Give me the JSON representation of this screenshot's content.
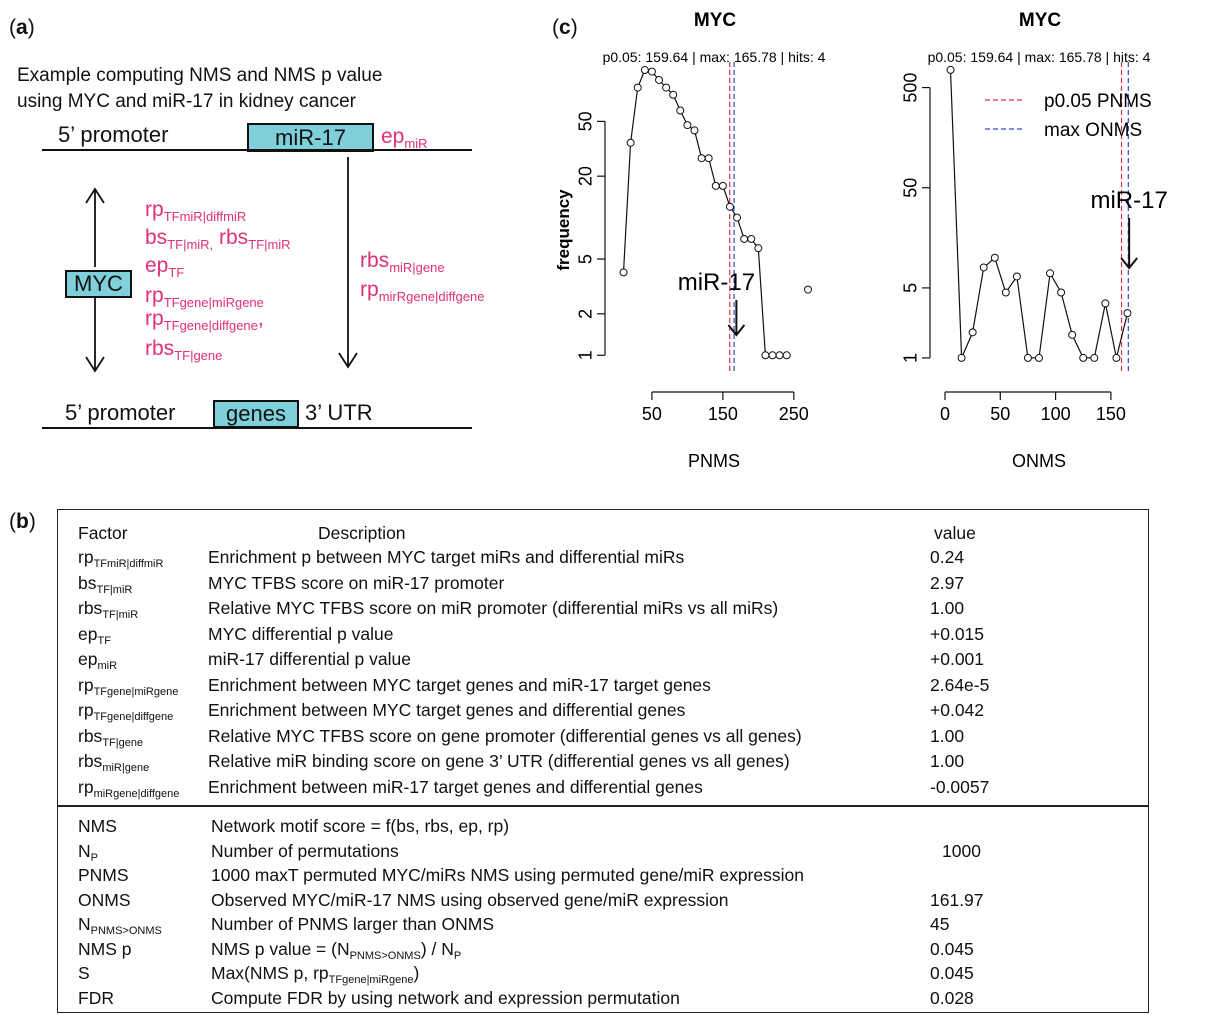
{
  "panel_a": {
    "label": "a",
    "example_line1": "Example computing NMS and NMS p value",
    "example_line2": "using MYC and miR-17 in kidney cancer",
    "top_promoter": "5’ promoter",
    "mir_box": "miR-17",
    "ep_mir": {
      "base": "ep",
      "sub": "miR"
    },
    "myc_box": "MYC",
    "left_vars": [
      {
        "base": "rp",
        "sub": "TFmiR|diffmiR"
      },
      {
        "base": "bs",
        "sub": "TF|miR,",
        "base2": " rbs",
        "sub2": "TF|miR"
      },
      {
        "base": "ep",
        "sub": "TF"
      },
      {
        "base": "rp",
        "sub": "TFgene|miRgene"
      },
      {
        "base": "rp",
        "sub": "TFgene|diffgene",
        "tail": ","
      },
      {
        "base": "rbs",
        "sub": "TF|gene"
      }
    ],
    "right_vars": [
      {
        "base": "rbs",
        "sub": "miR|gene"
      },
      {
        "base": "rp",
        "sub": "mirRgene|diffgene"
      }
    ],
    "bottom_promoter": "5’ promoter",
    "genes_box": "genes",
    "utr": "3’ UTR"
  },
  "panel_b": {
    "label": "b",
    "headers": {
      "factor": "Factor",
      "description": "Description",
      "value": "value"
    },
    "rows_top": [
      {
        "fb": "rp",
        "fs": "TFmiR|diffmiR",
        "desc": "Enrichment p between MYC target miRs and differential miRs",
        "value": "0.24"
      },
      {
        "fb": "bs",
        "fs": "TF|miR",
        "desc": "MYC TFBS score on miR-17 promoter",
        "value": "2.97"
      },
      {
        "fb": "rbs",
        "fs": "TF|miR",
        "desc": "Relative MYC TFBS score on miR promoter (differential miRs vs all miRs)",
        "value": "1.00"
      },
      {
        "fb": "ep",
        "fs": "TF",
        "desc": "MYC differential p value",
        "value": "+0.015"
      },
      {
        "fb": "ep",
        "fs": "miR",
        "desc": "miR-17 differential p value",
        "value": "+0.001"
      },
      {
        "fb": "rp",
        "fs": "TFgene|miRgene",
        "desc": "Enrichment between MYC target genes and miR-17 target genes",
        "value": "2.64e-5"
      },
      {
        "fb": "rp",
        "fs": "TFgene|diffgene",
        "desc": "Enrichment between MYC target genes and differential genes",
        "value": "+0.042"
      },
      {
        "fb": "rbs",
        "fs": "TF|gene",
        "desc": "Relative MYC TFBS score on gene promoter (differential genes vs all genes)",
        "value": "1.00"
      },
      {
        "fb": "rbs",
        "fs": "miR|gene",
        "desc": "Relative miR binding score on gene 3’ UTR (differential genes vs all genes)",
        "value": "1.00"
      },
      {
        "fb": "rp",
        "fs": "miRgene|diffgene",
        "desc": "Enrichment between miR-17 target genes and differential genes",
        "value": "-0.0057"
      }
    ],
    "rows_bottom": [
      {
        "fb": "NMS",
        "fs": "",
        "desc": "Network motif score  =  f(bs, rbs, ep, rp)",
        "value": ""
      },
      {
        "fb": "N",
        "fs": "P",
        "desc": "Number of permutations",
        "value": "1000"
      },
      {
        "fb": "PNMS",
        "fs": "",
        "desc": "1000 maxT permuted MYC/miRs NMS using permuted gene/miR expression",
        "value": ""
      },
      {
        "fb": "ONMS",
        "fs": "",
        "desc": "Observed MYC/miR-17 NMS using observed gene/miR expression",
        "value": "161.97"
      },
      {
        "fb": "N",
        "fs": "PNMS>ONMS",
        "desc": "Number of PNMS larger than ONMS",
        "value": "45"
      },
      {
        "fb": "NMS p",
        "fs": "",
        "desc": "NMS p value = (N",
        "desc_sub": "PNMS>ONMS",
        "desc_tail": ") / N",
        "desc_sub2": "P",
        "value": "0.045"
      },
      {
        "fb": "S",
        "fs": "",
        "desc": "Max(NMS p, rp",
        "desc_sub": "TFgene|miRgene",
        "desc_tail": ")",
        "value": "0.045"
      },
      {
        "fb": "FDR",
        "fs": "",
        "desc": "Compute FDR by using network and expression permutation",
        "value": "0.028"
      }
    ]
  },
  "panel_c": {
    "label": "c",
    "colors": {
      "p05": "#e0303a",
      "max": "#3a46c8",
      "line": "#111111"
    },
    "chart_data": [
      {
        "type": "line",
        "title": "MYC",
        "subtitle": "p0.05: 159.64 | max: 165.78 | hits: 4",
        "xlabel": "PNMS",
        "ylabel": "frequency",
        "y_scale": "log",
        "xlim": [
          5,
          270
        ],
        "ylim": [
          0.85,
          135
        ],
        "xticks": [
          50,
          150,
          250
        ],
        "yticks": [
          1,
          2,
          5,
          20,
          50
        ],
        "x": [
          10,
          20,
          30,
          40,
          50,
          60,
          70,
          80,
          90,
          100,
          110,
          120,
          130,
          140,
          150,
          160,
          170,
          180,
          190,
          200,
          210,
          220,
          230,
          240,
          270
        ],
        "y": [
          4,
          35,
          88,
          118,
          115,
          100,
          88,
          78,
          60,
          47,
          43,
          27,
          27,
          17,
          17,
          12,
          10,
          7,
          7,
          6,
          1,
          1,
          1,
          1,
          3
        ],
        "vlines": {
          "p05": 159.64,
          "max": 165.78
        },
        "annotation": "miR-17",
        "annotation_x": 162
      },
      {
        "type": "line",
        "title": "MYC",
        "subtitle": "p0.05: 159.64 | max: 165.78 | hits: 4",
        "xlabel": "ONMS",
        "ylabel": "",
        "y_scale": "log",
        "xlim": [
          0,
          170
        ],
        "ylim": [
          0.85,
          900
        ],
        "xticks": [
          0,
          50,
          100,
          150
        ],
        "yticks": [
          1,
          5,
          50,
          500
        ],
        "x": [
          5,
          15,
          25,
          35,
          45,
          55,
          65,
          75,
          85,
          95,
          105,
          115,
          125,
          135,
          145,
          155,
          165
        ],
        "y": [
          750,
          1,
          1.8,
          8,
          10,
          4.5,
          6.5,
          1,
          1,
          7,
          4.5,
          1.7,
          1,
          1,
          3.5,
          1,
          2.8
        ],
        "vlines": {
          "p05": 159.64,
          "max": 165.78
        },
        "legend": [
          {
            "name": "p0.05 PNMS",
            "color_key": "p05"
          },
          {
            "name": "max ONMS",
            "color_key": "max"
          }
        ],
        "legend_position": "top-right",
        "annotation": "miR-17",
        "annotation_x": 162
      }
    ]
  }
}
